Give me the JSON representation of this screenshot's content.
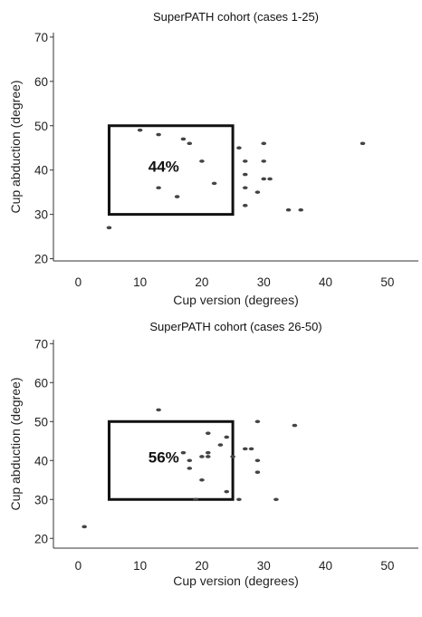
{
  "chart_data": [
    {
      "type": "scatter",
      "title": "SuperPATH cohort (cases 1-25)",
      "xlabel": "Cup version (degrees)",
      "ylabel": "Cup abduction (degree)",
      "xlim": [
        -4,
        55
      ],
      "ylim": [
        19.5,
        71
      ],
      "xticks": [
        0,
        10,
        20,
        30,
        40,
        50
      ],
      "yticks": [
        20,
        30,
        40,
        50,
        60,
        70
      ],
      "grid": false,
      "points": [
        {
          "x": 10,
          "y": 49
        },
        {
          "x": 13,
          "y": 48
        },
        {
          "x": 17,
          "y": 47
        },
        {
          "x": 18,
          "y": 46
        },
        {
          "x": 20,
          "y": 42
        },
        {
          "x": 13,
          "y": 36
        },
        {
          "x": 16,
          "y": 34
        },
        {
          "x": 22,
          "y": 37
        },
        {
          "x": 5,
          "y": 27
        },
        {
          "x": 26,
          "y": 45
        },
        {
          "x": 27,
          "y": 42
        },
        {
          "x": 27,
          "y": 39
        },
        {
          "x": 27,
          "y": 36
        },
        {
          "x": 27,
          "y": 32
        },
        {
          "x": 29,
          "y": 35
        },
        {
          "x": 30,
          "y": 46
        },
        {
          "x": 30,
          "y": 42
        },
        {
          "x": 30,
          "y": 38
        },
        {
          "x": 31,
          "y": 38
        },
        {
          "x": 34,
          "y": 31
        },
        {
          "x": 36,
          "y": 31
        },
        {
          "x": 46,
          "y": 46
        }
      ],
      "target_zone": {
        "x": [
          5,
          25
        ],
        "y": [
          30,
          50
        ],
        "label": "44%"
      }
    },
    {
      "type": "scatter",
      "title": "SuperPATH cohort (cases 26-50)",
      "xlabel": "Cup version (degrees)",
      "ylabel": "Cup abduction (degree)",
      "xlim": [
        -4,
        55
      ],
      "ylim": [
        17.5,
        71
      ],
      "xticks": [
        0,
        10,
        20,
        30,
        40,
        50
      ],
      "yticks": [
        20,
        30,
        40,
        50,
        60,
        70
      ],
      "grid": false,
      "points": [
        {
          "x": 13,
          "y": 53
        },
        {
          "x": 17,
          "y": 42
        },
        {
          "x": 18,
          "y": 40
        },
        {
          "x": 18,
          "y": 38
        },
        {
          "x": 20,
          "y": 35
        },
        {
          "x": 20,
          "y": 41
        },
        {
          "x": 21,
          "y": 47
        },
        {
          "x": 21,
          "y": 42
        },
        {
          "x": 21,
          "y": 41
        },
        {
          "x": 23,
          "y": 44
        },
        {
          "x": 24,
          "y": 46
        },
        {
          "x": 25,
          "y": 41
        },
        {
          "x": 24,
          "y": 32
        },
        {
          "x": 19,
          "y": 30
        },
        {
          "x": 26,
          "y": 30
        },
        {
          "x": 27,
          "y": 43
        },
        {
          "x": 28,
          "y": 43
        },
        {
          "x": 29,
          "y": 50
        },
        {
          "x": 29,
          "y": 40
        },
        {
          "x": 29,
          "y": 37
        },
        {
          "x": 32,
          "y": 30
        },
        {
          "x": 35,
          "y": 49
        },
        {
          "x": 1,
          "y": 23
        }
      ],
      "target_zone": {
        "x": [
          5,
          25
        ],
        "y": [
          30,
          50
        ],
        "label": "56%"
      }
    }
  ]
}
